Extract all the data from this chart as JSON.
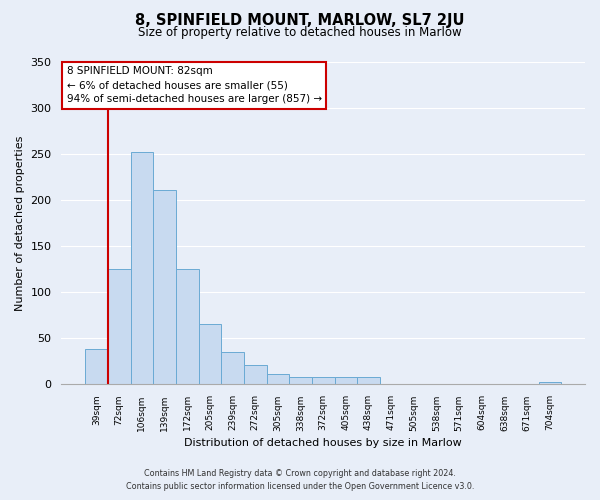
{
  "title": "8, SPINFIELD MOUNT, MARLOW, SL7 2JU",
  "subtitle": "Size of property relative to detached houses in Marlow",
  "xlabel": "Distribution of detached houses by size in Marlow",
  "ylabel": "Number of detached properties",
  "bar_labels": [
    "39sqm",
    "72sqm",
    "106sqm",
    "139sqm",
    "172sqm",
    "205sqm",
    "239sqm",
    "272sqm",
    "305sqm",
    "338sqm",
    "372sqm",
    "405sqm",
    "438sqm",
    "471sqm",
    "505sqm",
    "538sqm",
    "571sqm",
    "604sqm",
    "638sqm",
    "671sqm",
    "704sqm"
  ],
  "bar_values": [
    38,
    125,
    252,
    211,
    125,
    65,
    35,
    21,
    11,
    8,
    8,
    8,
    8,
    1,
    0,
    0,
    0,
    0,
    0,
    0,
    3
  ],
  "bar_color": "#c8daf0",
  "bar_edge_color": "#6aaad4",
  "property_line_color": "#cc0000",
  "annotation_text": "8 SPINFIELD MOUNT: 82sqm\n← 6% of detached houses are smaller (55)\n94% of semi-detached houses are larger (857) →",
  "annotation_box_color": "#ffffff",
  "annotation_box_edge_color": "#cc0000",
  "ylim": [
    0,
    350
  ],
  "yticks": [
    0,
    50,
    100,
    150,
    200,
    250,
    300,
    350
  ],
  "footer_line1": "Contains HM Land Registry data © Crown copyright and database right 2024.",
  "footer_line2": "Contains public sector information licensed under the Open Government Licence v3.0.",
  "bg_color": "#e8eef8",
  "plot_bg_color": "#e8eef8",
  "grid_color": "#ffffff"
}
